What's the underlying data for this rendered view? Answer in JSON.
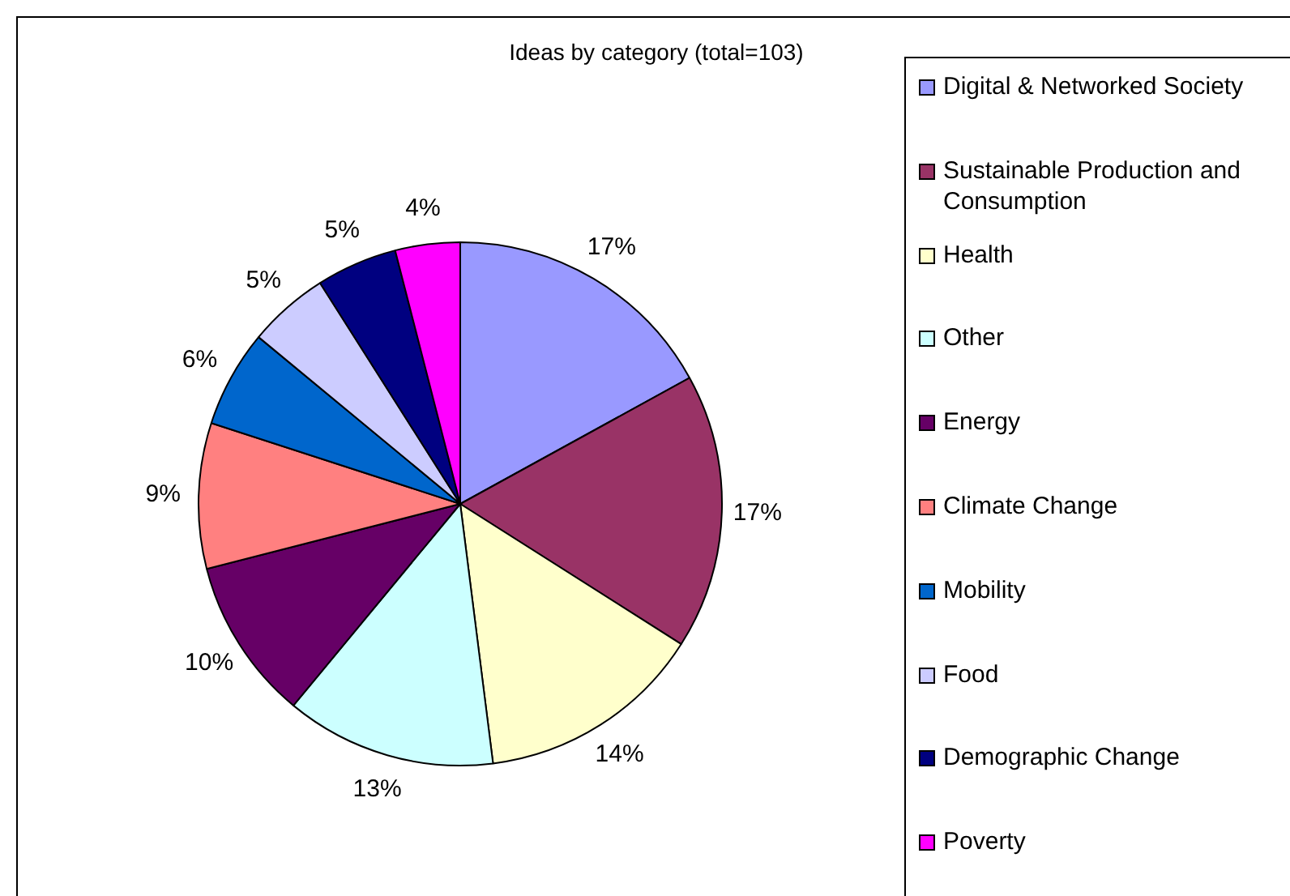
{
  "chart_data": {
    "type": "pie",
    "title": "Ideas by category (total=103)",
    "categories": [
      "Digital & Networked Society",
      "Sustainable Production and Consumption",
      "Health",
      "Other",
      "Energy",
      "Climate Change",
      "Mobility",
      "Food",
      "Demographic Change",
      "Poverty"
    ],
    "values": [
      17,
      17,
      14,
      13,
      10,
      9,
      6,
      5,
      5,
      4
    ],
    "value_labels": [
      "17%",
      "17%",
      "14%",
      "13%",
      "10%",
      "9%",
      "6%",
      "5%",
      "5%",
      "4%"
    ],
    "colors": [
      "#9999ff",
      "#993366",
      "#ffffcc",
      "#ccffff",
      "#660066",
      "#ff8080",
      "#0066cc",
      "#ccccff",
      "#000080",
      "#ff00ff"
    ],
    "legend": "right"
  }
}
